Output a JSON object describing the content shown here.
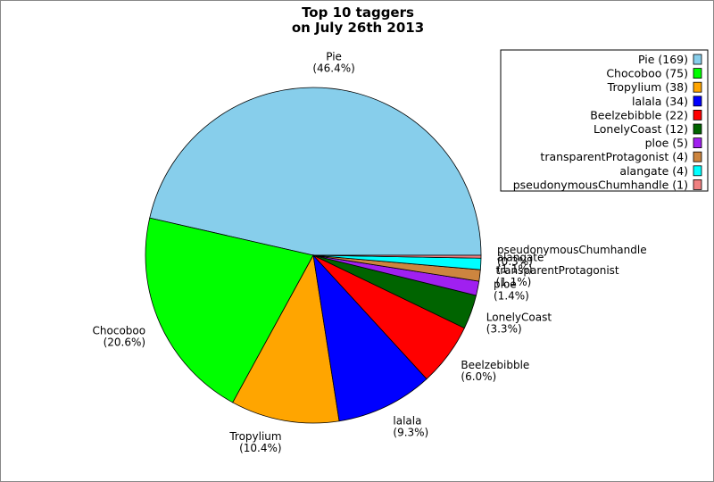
{
  "chart_data": {
    "type": "pie",
    "title_lines": [
      "Top 10 taggers",
      "on July 26th 2013"
    ],
    "legend_placement": "top-right",
    "slices": [
      {
        "name": "Pie",
        "value": 169,
        "label": "Pie",
        "pct": "(46.4%)",
        "legend": "Pie (169)",
        "color": "#87ceeb"
      },
      {
        "name": "Chocoboo",
        "value": 75,
        "label": "Chocoboo",
        "pct": "(20.6%)",
        "legend": "Chocoboo (75)",
        "color": "#00ff00"
      },
      {
        "name": "Tropylium",
        "value": 38,
        "label": "Tropylium",
        "pct": "(10.4%)",
        "legend": "Tropylium (38)",
        "color": "#ffa500"
      },
      {
        "name": "lalala",
        "value": 34,
        "label": "lalala",
        "pct": "(9.3%)",
        "legend": "lalala (34)",
        "color": "#0000ff"
      },
      {
        "name": "Beelzebibble",
        "value": 22,
        "label": "Beelzebibble",
        "pct": "(6.0%)",
        "legend": "Beelzebibble (22)",
        "color": "#ff0000"
      },
      {
        "name": "LonelyCoast",
        "value": 12,
        "label": "LonelyCoast",
        "pct": "(3.3%)",
        "legend": "LonelyCoast (12)",
        "color": "#006400"
      },
      {
        "name": "ploe",
        "value": 5,
        "label": "ploe",
        "pct": "(1.4%)",
        "legend": "ploe (5)",
        "color": "#a020f0"
      },
      {
        "name": "transparentProtagonist",
        "value": 4,
        "label": "transparentProtagonist",
        "pct": "(1.1%)",
        "legend": "transparentProtagonist (4)",
        "color": "#cd853f"
      },
      {
        "name": "alangate",
        "value": 4,
        "label": "alangate",
        "pct": "(1.1%)",
        "legend": "alangate (4)",
        "color": "#00ffff"
      },
      {
        "name": "pseudonymousChumhandle",
        "value": 1,
        "label": "pseudonymousChumhandle",
        "pct": "(0.3%)",
        "legend": "pseudonymousChumhandle (1)",
        "color": "#f08080"
      }
    ]
  }
}
